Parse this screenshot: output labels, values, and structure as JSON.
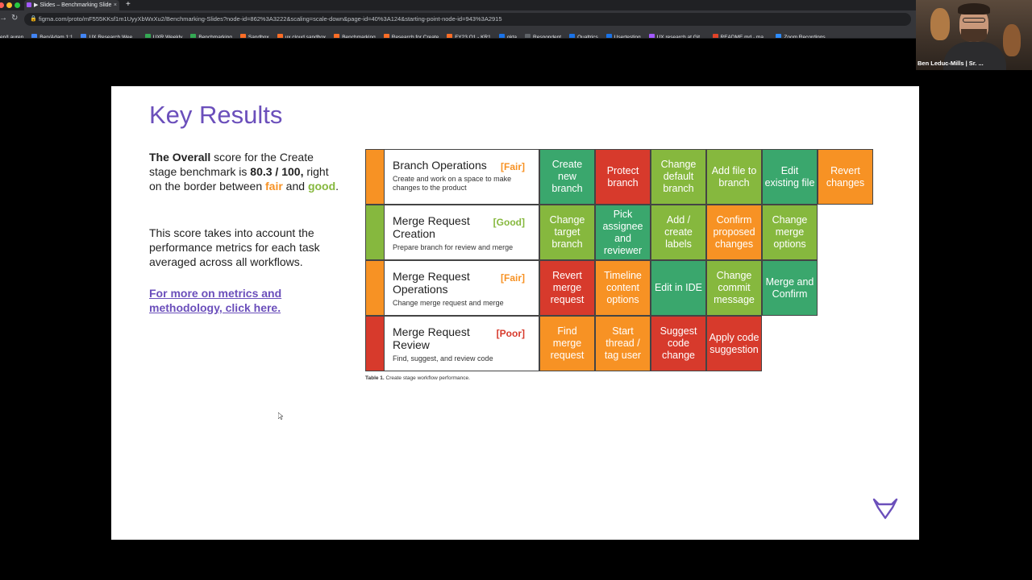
{
  "browser": {
    "tab_title": "▶ Slides – Benchmarking Slide",
    "url": "figma.com/proto/mF555KKsf1m1UyyXbWxXu2/Benchmarking-Slides?node-id=862%3A3222&scaling=scale-down&page-id=40%3A124&starting-point-node-id=943%3A2915",
    "bookmarks": [
      {
        "label": "en/Lauren",
        "color": "#5f6368"
      },
      {
        "label": "Ben/Adam 1:1",
        "color": "#4285f4"
      },
      {
        "label": "UX Research Wee...",
        "color": "#4285f4"
      },
      {
        "label": "UXR Weekly",
        "color": "#34a853"
      },
      {
        "label": "Benchmarking",
        "color": "#34a853"
      },
      {
        "label": "Sandbox",
        "color": "#fc6d26"
      },
      {
        "label": "ux cloud sandbox",
        "color": "#fc6d26"
      },
      {
        "label": "Benchmarking",
        "color": "#fc6d26"
      },
      {
        "label": "Research for Create",
        "color": "#fc6d26"
      },
      {
        "label": "FY23 Q1 - KR1",
        "color": "#fc6d26"
      },
      {
        "label": "okta",
        "color": "#1a73e8"
      },
      {
        "label": "Respondent",
        "color": "#5f6368"
      },
      {
        "label": "Qualtrics",
        "color": "#1a73e8"
      },
      {
        "label": "Usertesting",
        "color": "#1a73e8"
      },
      {
        "label": "UX research at Git...",
        "color": "#a259ff"
      },
      {
        "label": "README.md · ma...",
        "color": "#e24329"
      },
      {
        "label": "Zoom Recordings",
        "color": "#2d8cff"
      }
    ]
  },
  "webcam": {
    "name": "Ben Leduc-Mills | Sr. ..."
  },
  "slide": {
    "title": "Key Results",
    "overall_bold": "The Overall",
    "overall_text1": " score for the Create stage benchmark is ",
    "overall_score": "80.3 / 100,",
    "overall_text2": " right on the border between ",
    "fair_word": "fair",
    "overall_text3": " and ",
    "good_word": "good",
    "overall_text4": ".",
    "desc2": "This score takes into account the performance metrics for each task averaged across all workflows.",
    "link": "For more on metrics and methodology, click here.",
    "caption_bold": "Table 1.",
    "caption_text": " Create stage workflow performance."
  },
  "colors": {
    "red": "#d73a2c",
    "orange": "#f79224",
    "light_green": "#86b83e",
    "green": "#3aa76d",
    "purple": "#6b4fbb"
  },
  "table": [
    {
      "name": "Branch Operations",
      "rating": "[Fair]",
      "rating_color": "#f79224",
      "strip_color": "#f79224",
      "sub": "Create and work on a space to make changes to the product",
      "tasks": [
        {
          "label": "Create new branch",
          "color": "#3aa76d"
        },
        {
          "label": "Protect branch",
          "color": "#d73a2c"
        },
        {
          "label": "Change default branch",
          "color": "#86b83e"
        },
        {
          "label": "Add file to branch",
          "color": "#86b83e"
        },
        {
          "label": "Edit existing file",
          "color": "#3aa76d"
        },
        {
          "label": "Revert changes",
          "color": "#f79224"
        }
      ]
    },
    {
      "name": "Merge Request Creation",
      "rating": "[Good]",
      "rating_color": "#86b83e",
      "strip_color": "#86b83e",
      "sub": "Prepare branch for review and merge",
      "tasks": [
        {
          "label": "Change target branch",
          "color": "#86b83e"
        },
        {
          "label": "Pick assignee and reviewer",
          "color": "#3aa76d"
        },
        {
          "label": "Add / create labels",
          "color": "#86b83e"
        },
        {
          "label": "Confirm proposed changes",
          "color": "#f79224"
        },
        {
          "label": "Change merge options",
          "color": "#86b83e"
        }
      ]
    },
    {
      "name": "Merge Request Operations",
      "rating": "[Fair]",
      "rating_color": "#f79224",
      "strip_color": "#f79224",
      "sub": "Change merge request and merge",
      "tasks": [
        {
          "label": "Revert merge request",
          "color": "#d73a2c"
        },
        {
          "label": "Timeline content options",
          "color": "#f79224"
        },
        {
          "label": "Edit in IDE",
          "color": "#3aa76d"
        },
        {
          "label": "Change commit message",
          "color": "#86b83e"
        },
        {
          "label": "Merge and Confirm",
          "color": "#3aa76d"
        }
      ]
    },
    {
      "name": "Merge Request Review",
      "rating": "[Poor]",
      "rating_color": "#d73a2c",
      "strip_color": "#d73a2c",
      "sub": "Find, suggest, and review code",
      "tasks": [
        {
          "label": "Find merge request",
          "color": "#f79224"
        },
        {
          "label": "Start thread / tag user",
          "color": "#f79224"
        },
        {
          "label": "Suggest code change",
          "color": "#d73a2c"
        },
        {
          "label": "Apply code suggestion",
          "color": "#d73a2c"
        }
      ]
    }
  ]
}
